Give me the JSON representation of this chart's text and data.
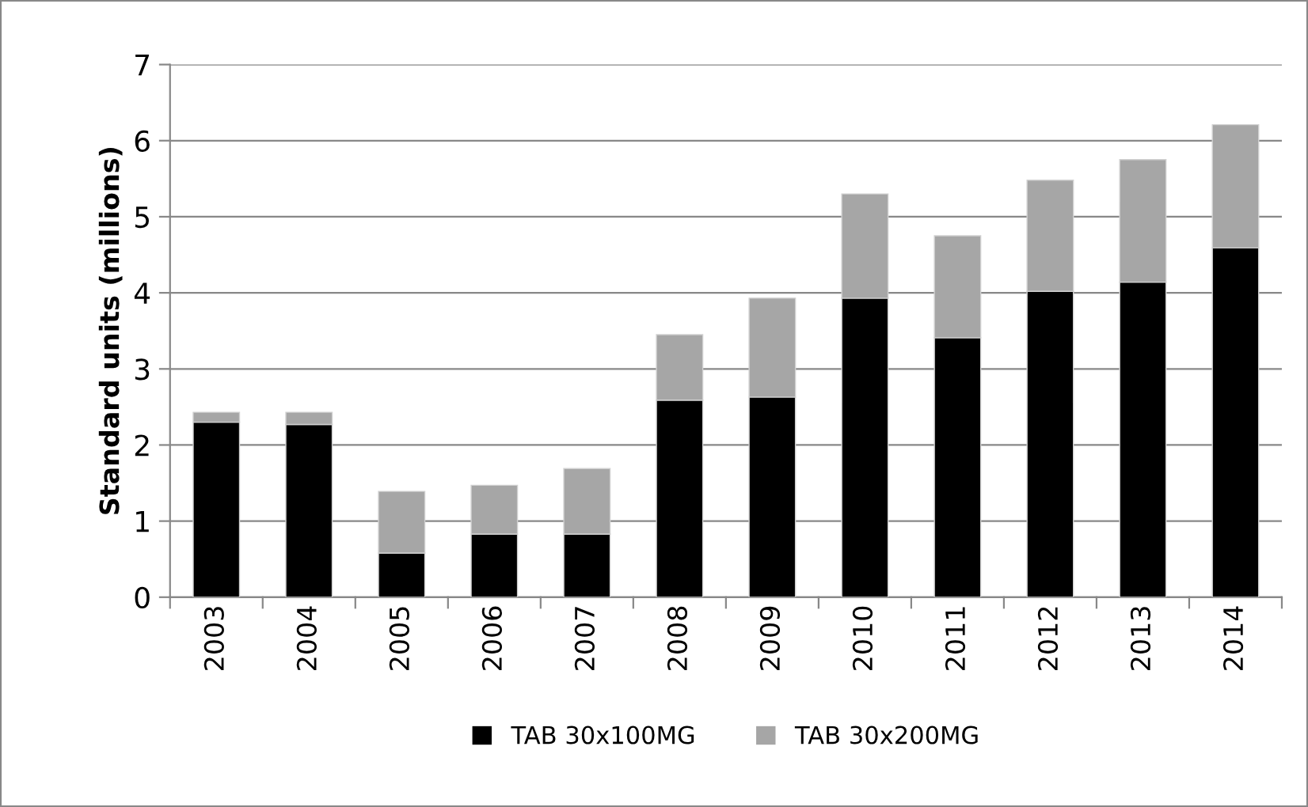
{
  "chart_data": {
    "type": "bar",
    "stacked": true,
    "ylabel": "Standard units (millions)",
    "categories": [
      "2003",
      "2004",
      "2005",
      "2006",
      "2007",
      "2008",
      "2009",
      "2010",
      "2011",
      "2012",
      "2013",
      "2014"
    ],
    "series": [
      {
        "name": "TAB 30x100MG",
        "color": "#000000",
        "values": [
          2.3,
          2.27,
          0.58,
          0.83,
          0.83,
          2.59,
          2.63,
          3.93,
          3.41,
          4.02,
          4.14,
          4.59
        ]
      },
      {
        "name": "TAB 30x200MG",
        "color": "#a6a6a6",
        "values": [
          0.13,
          0.16,
          0.81,
          0.64,
          0.86,
          0.86,
          1.3,
          1.37,
          1.34,
          1.46,
          1.61,
          1.62
        ]
      }
    ],
    "ylim": [
      0,
      7
    ],
    "yticks": [
      0,
      1,
      2,
      3,
      4,
      5,
      6,
      7
    ],
    "grid": "y",
    "legend": "bottom"
  }
}
